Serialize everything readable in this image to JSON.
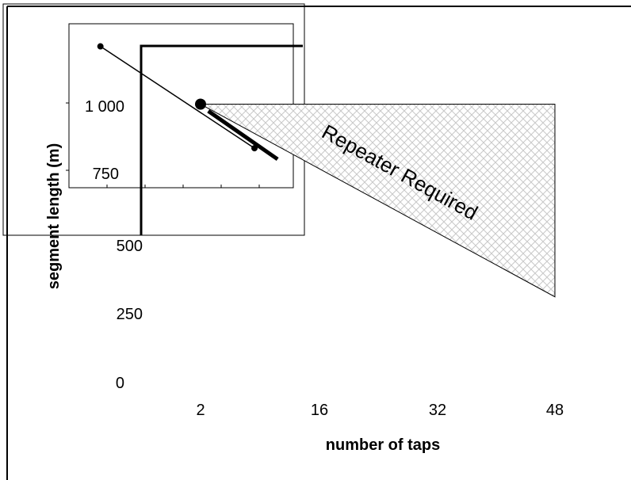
{
  "chart_data": {
    "type": "line",
    "xlabel": "number of taps",
    "ylabel": "segment length (m)",
    "x_ticks": [
      "2",
      "16",
      "32",
      "48"
    ],
    "y_ticks": [
      "0",
      "250",
      "500",
      "750",
      "1 000"
    ],
    "xlim": [
      2,
      48
    ],
    "ylim": [
      0,
      1200
    ],
    "region": {
      "label": "Repeater Required",
      "fill": "crosshatch",
      "points": [
        [
          2,
          1000
        ],
        [
          48,
          1000
        ],
        [
          48,
          300
        ]
      ]
    },
    "series": [
      {
        "points": [
          [
            -11,
            1210
          ],
          [
            9,
            840
          ]
        ],
        "marker": "small-dot",
        "width": "thin"
      },
      {
        "points": [
          [
            2,
            1000
          ]
        ],
        "marker": "large-dot"
      },
      {
        "points": [
          [
            3,
            975
          ],
          [
            12,
            800
          ]
        ],
        "width": "thick"
      }
    ],
    "colors": {
      "line": "#000000",
      "hatch": "#c8c8c8",
      "background": "#ffffff"
    }
  }
}
